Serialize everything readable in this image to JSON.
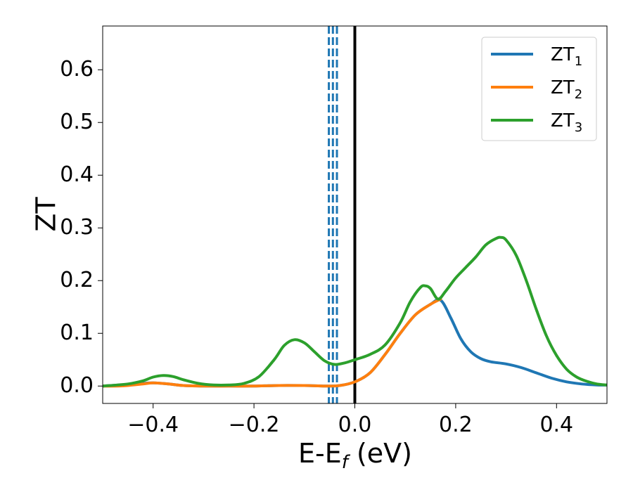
{
  "chart_data": {
    "type": "line",
    "xlabel_main": "E-E",
    "xlabel_sub": "f",
    "xlabel_unit": " (eV)",
    "ylabel": "ZT",
    "xlim": [
      -0.5,
      0.5
    ],
    "ylim": [
      -0.033,
      0.683
    ],
    "xticks": [
      -0.4,
      -0.2,
      0.0,
      0.2,
      0.4
    ],
    "xtick_labels": [
      "−0.4",
      "−0.2",
      "0.0",
      "0.2",
      "0.4"
    ],
    "yticks": [
      0.0,
      0.1,
      0.2,
      0.3,
      0.4,
      0.5,
      0.6
    ],
    "ytick_labels": [
      "0.0",
      "0.1",
      "0.2",
      "0.3",
      "0.4",
      "0.5",
      "0.6"
    ],
    "legend_position": "top-right",
    "grid": false,
    "vertical_lines": [
      {
        "x": 0.0,
        "color": "#000000",
        "style": "solid"
      },
      {
        "x": -0.0515,
        "color": "#1f77b4",
        "style": "dashed"
      },
      {
        "x": -0.0435,
        "color": "#1f77b4",
        "style": "dashed"
      },
      {
        "x": -0.0355,
        "color": "#1f77b4",
        "style": "dashed"
      }
    ],
    "series": [
      {
        "name": "ZT",
        "subscript": "1",
        "color": "#1f77b4",
        "x": [
          -0.5,
          -0.45,
          -0.42,
          -0.4,
          -0.37,
          -0.34,
          -0.3,
          -0.25,
          -0.2,
          -0.15,
          -0.1,
          -0.06,
          -0.03,
          0.0,
          0.03,
          0.06,
          0.09,
          0.12,
          0.15,
          0.17,
          0.19,
          0.21,
          0.23,
          0.25,
          0.27,
          0.3,
          0.33,
          0.36,
          0.39,
          0.42,
          0.45,
          0.48,
          0.5
        ],
        "y": [
          0.0,
          0.003,
          0.005,
          0.006,
          0.004,
          0.001,
          0.0,
          0.0,
          0.0,
          0.001,
          0.001,
          0.0,
          0.001,
          0.008,
          0.025,
          0.06,
          0.1,
          0.135,
          0.155,
          0.163,
          0.13,
          0.09,
          0.065,
          0.052,
          0.046,
          0.042,
          0.035,
          0.025,
          0.015,
          0.008,
          0.004,
          0.002,
          0.002
        ]
      },
      {
        "name": "ZT",
        "subscript": "2",
        "color": "#ff7f0e",
        "x": [
          -0.5,
          -0.47,
          -0.45,
          -0.42,
          -0.4,
          -0.37,
          -0.34,
          -0.3,
          -0.25,
          -0.2,
          -0.15,
          -0.1,
          -0.06,
          -0.03,
          0.0,
          0.03,
          0.06,
          0.09,
          0.12,
          0.15,
          0.17
        ],
        "y": [
          0.0,
          0.0,
          0.001,
          0.004,
          0.006,
          0.004,
          0.001,
          0.0,
          0.0,
          0.0,
          0.001,
          0.001,
          0.0,
          0.001,
          0.008,
          0.025,
          0.06,
          0.1,
          0.135,
          0.155,
          0.165
        ]
      },
      {
        "name": "ZT",
        "subscript": "3",
        "color": "#2ca02c",
        "x": [
          -0.5,
          -0.45,
          -0.42,
          -0.4,
          -0.38,
          -0.36,
          -0.34,
          -0.31,
          -0.28,
          -0.25,
          -0.22,
          -0.19,
          -0.16,
          -0.14,
          -0.12,
          -0.1,
          -0.08,
          -0.06,
          -0.04,
          -0.02,
          0.0,
          0.03,
          0.06,
          0.09,
          0.11,
          0.13,
          0.14,
          0.15,
          0.165,
          0.18,
          0.2,
          0.22,
          0.24,
          0.26,
          0.28,
          0.29,
          0.3,
          0.32,
          0.34,
          0.36,
          0.38,
          0.4,
          0.42,
          0.44,
          0.46,
          0.48,
          0.5
        ],
        "y": [
          0.0,
          0.004,
          0.01,
          0.017,
          0.02,
          0.018,
          0.012,
          0.005,
          0.002,
          0.002,
          0.005,
          0.018,
          0.05,
          0.077,
          0.088,
          0.082,
          0.065,
          0.048,
          0.041,
          0.044,
          0.05,
          0.06,
          0.078,
          0.12,
          0.16,
          0.187,
          0.19,
          0.185,
          0.165,
          0.18,
          0.205,
          0.225,
          0.245,
          0.268,
          0.28,
          0.282,
          0.277,
          0.248,
          0.2,
          0.145,
          0.095,
          0.058,
          0.032,
          0.017,
          0.009,
          0.004,
          0.002
        ]
      }
    ]
  }
}
